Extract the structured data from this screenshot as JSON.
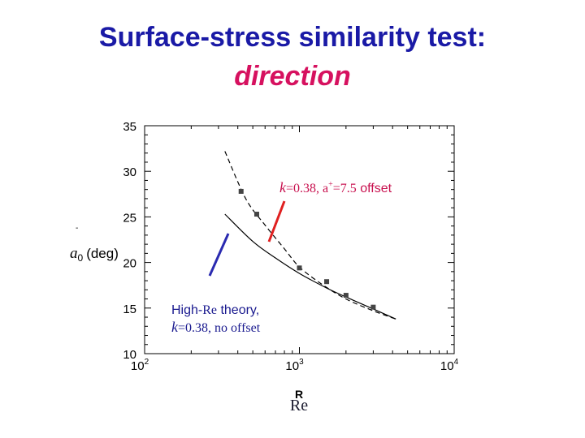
{
  "slide": {
    "title_line1": "Surface-stress similarity test:",
    "title_line2": "direction"
  },
  "colors": {
    "title": "#1a1aa6",
    "accent": "#d6115f",
    "red_arrow": "#e02020",
    "blue_arrow": "#2a2ab0"
  },
  "chart_data": {
    "type": "line",
    "x_scale": "log",
    "xlim": [
      100,
      10000
    ],
    "ylim": [
      10,
      35
    ],
    "y_ticks": [
      "35",
      "30",
      "25",
      "20",
      "15",
      "10"
    ],
    "x_ticks": [
      {
        "base": "10",
        "exp": "2"
      },
      {
        "base": "10",
        "exp": "3"
      },
      {
        "base": "10",
        "exp": "4"
      }
    ],
    "ylabel_symbol": "a",
    "ylabel_sub": "0",
    "ylabel_text": "(deg)",
    "xlabel_top": "R",
    "xlabel": "Re",
    "series": [
      {
        "style": "dashed",
        "x": [
          330,
          450,
          600,
          800,
          1000,
          1400,
          2000,
          3000,
          4200
        ],
        "y": [
          32.2,
          27.0,
          24.1,
          21.5,
          19.5,
          17.6,
          16.0,
          14.7,
          13.8
        ]
      },
      {
        "style": "solid",
        "x": [
          330,
          500,
          700,
          1000,
          1500,
          2200,
          3000,
          4200
        ],
        "y": [
          25.3,
          22.3,
          20.5,
          18.8,
          17.2,
          15.9,
          14.9,
          13.8
        ]
      },
      {
        "style": "markers",
        "x": [
          420,
          530,
          1000,
          1500,
          2000,
          3000
        ],
        "y": [
          27.8,
          25.3,
          19.4,
          17.9,
          16.4,
          15.1
        ]
      }
    ],
    "annotations": {
      "red": {
        "symbol": "k",
        "text": "=0.38, a",
        "sup": "+",
        "value": "=7.5",
        "suffix": " offset"
      },
      "blue_line1": {
        "prefix": "High-",
        "mid": "Re",
        "suffix": " theory,"
      },
      "blue_line2": {
        "symbol": "k",
        "text": "=0.38, no offset"
      }
    }
  }
}
